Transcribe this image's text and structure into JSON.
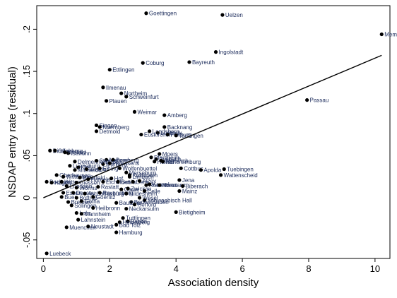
{
  "chart_data": {
    "type": "scatter",
    "xlabel": "Association density",
    "ylabel": "NSDAP entry rate (residual)",
    "xlim": [
      -0.2,
      10.45
    ],
    "ylim": [
      -0.072,
      0.228
    ],
    "x_ticks": [
      0,
      2,
      4,
      6,
      8,
      10
    ],
    "y_ticks": [
      -0.05,
      0,
      0.05,
      0.1,
      0.15,
      0.2
    ],
    "y_tick_labels": [
      "-.05",
      "0",
      ".05",
      ".1",
      ".15",
      ".2"
    ],
    "grid": false,
    "fit_line": {
      "x0": 0,
      "y0": 0,
      "x1": 10.2,
      "y1": 0.169
    },
    "colors": {
      "point": "#000000",
      "label": "#1a2a5a",
      "line": "#000000"
    },
    "points": [
      {
        "x": 3.1,
        "y": 0.219,
        "label": "Goettingen"
      },
      {
        "x": 5.4,
        "y": 0.217,
        "label": "Uelzen"
      },
      {
        "x": 10.2,
        "y": 0.194,
        "label": "Mem"
      },
      {
        "x": 5.2,
        "y": 0.173,
        "label": "Ingolstadt"
      },
      {
        "x": 3.0,
        "y": 0.16,
        "label": "Coburg"
      },
      {
        "x": 4.4,
        "y": 0.161,
        "label": "Bayreuth"
      },
      {
        "x": 2.0,
        "y": 0.152,
        "label": "Ettlingen"
      },
      {
        "x": 7.95,
        "y": 0.116,
        "label": "Passau"
      },
      {
        "x": 1.8,
        "y": 0.131,
        "label": "Ilmenau"
      },
      {
        "x": 2.35,
        "y": 0.124,
        "label": "Northeim"
      },
      {
        "x": 2.5,
        "y": 0.12,
        "label": "Schweinfurt"
      },
      {
        "x": 1.9,
        "y": 0.115,
        "label": "Plauen"
      },
      {
        "x": 2.75,
        "y": 0.102,
        "label": "Weimar"
      },
      {
        "x": 3.65,
        "y": 0.098,
        "label": "Amberg"
      },
      {
        "x": 1.6,
        "y": 0.086,
        "label": "Singen"
      },
      {
        "x": 1.7,
        "y": 0.084,
        "label": "Nuernberg"
      },
      {
        "x": 1.6,
        "y": 0.079,
        "label": "Detmold"
      },
      {
        "x": 3.65,
        "y": 0.084,
        "label": "Backnang"
      },
      {
        "x": 3.2,
        "y": 0.079,
        "label": "Landsberg"
      },
      {
        "x": 3.45,
        "y": 0.077,
        "label": "Luebeck"
      },
      {
        "x": 2.95,
        "y": 0.075,
        "label": "Euskirchen"
      },
      {
        "x": 3.75,
        "y": 0.075,
        "label": "Freiburg"
      },
      {
        "x": 4.0,
        "y": 0.074,
        "label": "Taufingen"
      },
      {
        "x": 0.2,
        "y": 0.056,
        "label": "Dinslaken"
      },
      {
        "x": 0.35,
        "y": 0.056,
        "label": "Offenburg"
      },
      {
        "x": 0.75,
        "y": 0.053,
        "label": "Iserlohn"
      },
      {
        "x": 0.65,
        "y": 0.054,
        "label": "Krefeld"
      },
      {
        "x": 3.5,
        "y": 0.052,
        "label": "Moers"
      },
      {
        "x": 3.4,
        "y": 0.046,
        "label": "Ansbach"
      },
      {
        "x": 3.25,
        "y": 0.048,
        "label": "Pforzheim"
      },
      {
        "x": 3.35,
        "y": 0.043,
        "label": "Hanau"
      },
      {
        "x": 3.55,
        "y": 0.044,
        "label": "Oberkirch"
      },
      {
        "x": 3.6,
        "y": 0.043,
        "label": "Hohenlimburg"
      },
      {
        "x": 1.9,
        "y": 0.045,
        "label": "Meissen"
      },
      {
        "x": 1.8,
        "y": 0.04,
        "label": "Marburg"
      },
      {
        "x": 0.95,
        "y": 0.043,
        "label": "Delmenhorst"
      },
      {
        "x": 1.6,
        "y": 0.044,
        "label": "Stendal"
      },
      {
        "x": 2.1,
        "y": 0.045,
        "label": "Bamberg"
      },
      {
        "x": 0.8,
        "y": 0.038,
        "label": "Lueneburg"
      },
      {
        "x": 2.0,
        "y": 0.041,
        "label": "Pirmasens"
      },
      {
        "x": 1.05,
        "y": 0.036,
        "label": "Kiel"
      },
      {
        "x": 0.95,
        "y": 0.033,
        "label": "Mittweida"
      },
      {
        "x": 1.3,
        "y": 0.034,
        "label": "Wetzlar"
      },
      {
        "x": 1.7,
        "y": 0.035,
        "label": "Elbing"
      },
      {
        "x": 2.3,
        "y": 0.035,
        "label": "Wolfenbuettel"
      },
      {
        "x": 2.5,
        "y": 0.03,
        "label": "Merseburg"
      },
      {
        "x": 2.6,
        "y": 0.027,
        "label": "Kulmbach"
      },
      {
        "x": 4.15,
        "y": 0.035,
        "label": "Cottbus"
      },
      {
        "x": 4.75,
        "y": 0.033,
        "label": "Apolda"
      },
      {
        "x": 5.45,
        "y": 0.034,
        "label": "Tuebingen"
      },
      {
        "x": 5.35,
        "y": 0.027,
        "label": "Wattenscheid"
      },
      {
        "x": 0.4,
        "y": 0.027,
        "label": "Oberhausen"
      },
      {
        "x": 0.6,
        "y": 0.025,
        "label": "Wittenberg"
      },
      {
        "x": 1.1,
        "y": 0.024,
        "label": "Bitterfeld"
      },
      {
        "x": 1.35,
        "y": 0.022,
        "label": "Hameln"
      },
      {
        "x": 2.05,
        "y": 0.023,
        "label": "Hof"
      },
      {
        "x": 2.6,
        "y": 0.025,
        "label": "Limbach"
      },
      {
        "x": 0.1,
        "y": 0.019,
        "label": "Bochum"
      },
      {
        "x": 0.25,
        "y": 0.018,
        "label": "Hagen"
      },
      {
        "x": 0.55,
        "y": 0.019,
        "label": "Witten"
      },
      {
        "x": 1.0,
        "y": 0.018,
        "label": "Giessen"
      },
      {
        "x": 1.8,
        "y": 0.019,
        "label": "Eichstaett"
      },
      {
        "x": 2.25,
        "y": 0.019,
        "label": "Goslar"
      },
      {
        "x": 2.7,
        "y": 0.019,
        "label": "Gera"
      },
      {
        "x": 2.9,
        "y": 0.02,
        "label": "Alzey"
      },
      {
        "x": 3.1,
        "y": 0.015,
        "label": "Rosenheim"
      },
      {
        "x": 3.2,
        "y": 0.016,
        "label": "Kassel"
      },
      {
        "x": 3.5,
        "y": 0.015,
        "label": "Konstanz"
      },
      {
        "x": 4.1,
        "y": 0.021,
        "label": "Jena"
      },
      {
        "x": 4.2,
        "y": 0.014,
        "label": "Biberach"
      },
      {
        "x": 4.1,
        "y": 0.008,
        "label": "Mainz"
      },
      {
        "x": 0.7,
        "y": 0.014,
        "label": "Erlangen"
      },
      {
        "x": 1.0,
        "y": 0.012,
        "label": "Worms"
      },
      {
        "x": 1.65,
        "y": 0.013,
        "label": "Rastatt"
      },
      {
        "x": 2.35,
        "y": 0.01,
        "label": "Cleve"
      },
      {
        "x": 2.55,
        "y": 0.011,
        "label": "Zwickau"
      },
      {
        "x": 3.05,
        "y": 0.008,
        "label": "Celle"
      },
      {
        "x": 0.6,
        "y": 0.006,
        "label": "Essen"
      },
      {
        "x": 0.9,
        "y": 0.006,
        "label": "Dessau"
      },
      {
        "x": 1.25,
        "y": 0.005,
        "label": "Aschaffenburg"
      },
      {
        "x": 1.7,
        "y": 0.006,
        "label": "Ravensburg"
      },
      {
        "x": 2.5,
        "y": 0.005,
        "label": "Hildesheim"
      },
      {
        "x": 0.55,
        "y": 0.001,
        "label": "Buer"
      },
      {
        "x": 1.0,
        "y": 0.0,
        "label": "Bottrop"
      },
      {
        "x": 1.5,
        "y": 0.001,
        "label": "Goerlitz"
      },
      {
        "x": 2.9,
        "y": 0.0,
        "label": "Wesel"
      },
      {
        "x": 3.05,
        "y": -0.003,
        "label": "Schwaebisch Hall"
      },
      {
        "x": 2.65,
        "y": -0.005,
        "label": "Baden-Baden"
      },
      {
        "x": 0.75,
        "y": -0.005,
        "label": "Bremen"
      },
      {
        "x": 1.15,
        "y": -0.004,
        "label": "Gotha"
      },
      {
        "x": 0.85,
        "y": -0.009,
        "label": "Solingen"
      },
      {
        "x": 2.2,
        "y": -0.006,
        "label": "Bautzen"
      },
      {
        "x": 2.75,
        "y": -0.008,
        "label": "Herford"
      },
      {
        "x": 1.5,
        "y": -0.012,
        "label": "Heilbronn"
      },
      {
        "x": 2.5,
        "y": -0.013,
        "label": "Neckarsulm"
      },
      {
        "x": 4.0,
        "y": -0.017,
        "label": "Bietigheim"
      },
      {
        "x": 1.0,
        "y": -0.018,
        "label": "Lahr"
      },
      {
        "x": 1.15,
        "y": -0.019,
        "label": "Mannheim"
      },
      {
        "x": 1.05,
        "y": -0.026,
        "label": "Lahnstein"
      },
      {
        "x": 2.4,
        "y": -0.024,
        "label": "Tuttlingen"
      },
      {
        "x": 2.55,
        "y": -0.028,
        "label": "Baden"
      },
      {
        "x": 2.3,
        "y": -0.029,
        "label": "Heidelberg"
      },
      {
        "x": 0.7,
        "y": -0.035,
        "label": "Muenchen"
      },
      {
        "x": 1.35,
        "y": -0.034,
        "label": "Neustadt"
      },
      {
        "x": 2.2,
        "y": -0.032,
        "label": "Bad Tolz"
      },
      {
        "x": 2.2,
        "y": -0.041,
        "label": "Hamburg"
      },
      {
        "x": 0.1,
        "y": -0.066,
        "label": "Luebeck"
      }
    ]
  }
}
